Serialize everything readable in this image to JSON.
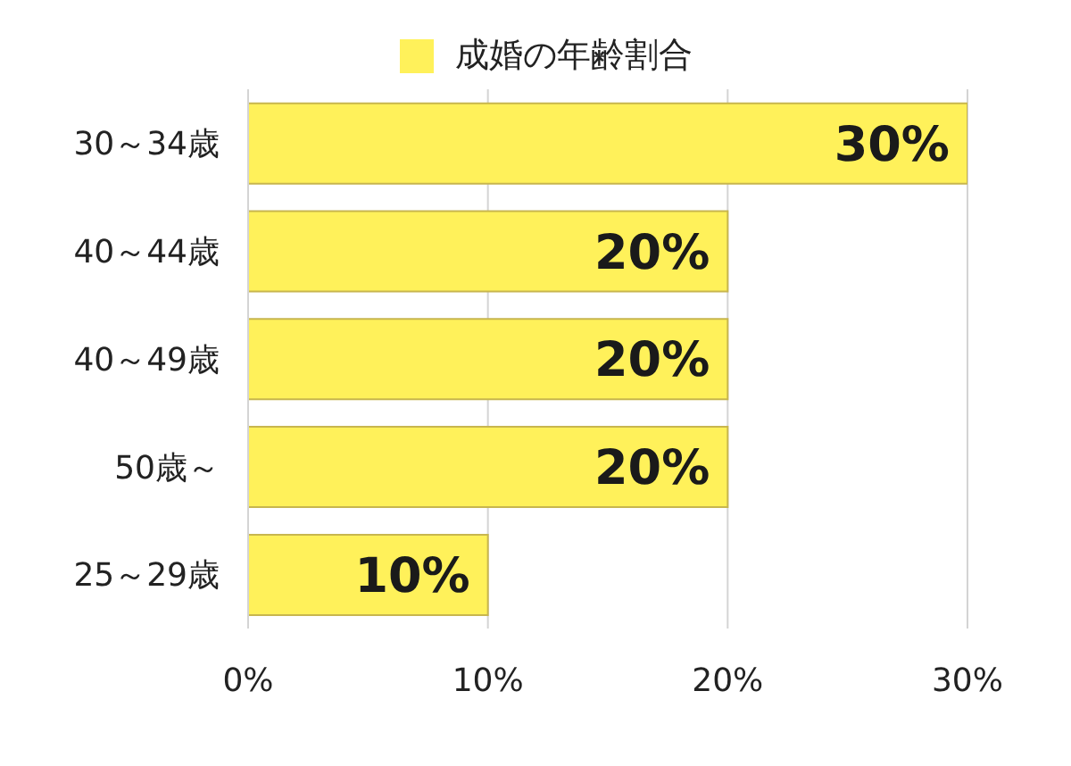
{
  "chart_data": {
    "type": "bar",
    "orientation": "horizontal",
    "categories": [
      "30～34歳",
      "40～44歳",
      "40～49歳",
      "50歳～",
      "25～29歳"
    ],
    "series": [
      {
        "name": "成婚の年齢割合",
        "color": "#fff15a",
        "values": [
          30,
          20,
          20,
          20,
          10
        ],
        "value_labels": [
          "30%",
          "20%",
          "20%",
          "20%",
          "10%"
        ]
      }
    ],
    "xlim": [
      0,
      30
    ],
    "xticks": [
      {
        "value": 0,
        "label": "0%"
      },
      {
        "value": 10,
        "label": "10%"
      },
      {
        "value": 20,
        "label": "20%"
      },
      {
        "value": 30,
        "label": "30%"
      }
    ],
    "grid": "x",
    "legend": "top"
  }
}
